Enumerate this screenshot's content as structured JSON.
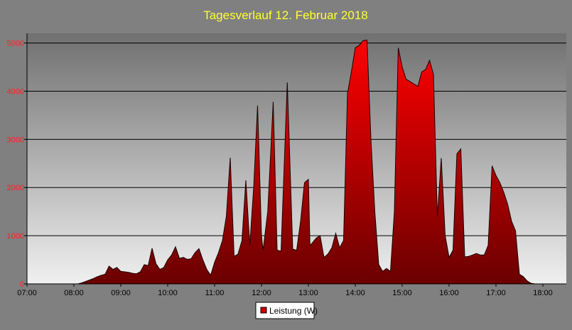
{
  "chart_data": {
    "type": "area",
    "title": "Tagesverlauf 12. Februar 2018",
    "xlabel": "",
    "ylabel": "",
    "x_ticks": [
      "07:00",
      "08:00",
      "09:00",
      "10:00",
      "11:00",
      "12:00",
      "13:00",
      "14:00",
      "15:00",
      "16:00",
      "17:00",
      "18:00"
    ],
    "y_ticks": [
      "0",
      "1000",
      "2000",
      "3000",
      "4000",
      "5000"
    ],
    "xlim": [
      "07:00",
      "18:30"
    ],
    "ylim": [
      0,
      5200
    ],
    "grid": true,
    "legend_position": "bottom-center",
    "colors": {
      "background": "#808080",
      "plot_top": "#707070",
      "plot_bottom": "#f0f0f0",
      "fill_top": "#ff0000",
      "fill_bottom": "#6a0000",
      "line": "#1a0000",
      "title": "#ffff33",
      "y_tick_label": "#ff2020",
      "grid": "#000000"
    },
    "series": [
      {
        "name": "Leistung (W)",
        "points": [
          [
            "07:00",
            0
          ],
          [
            "08:00",
            0
          ],
          [
            "08:05",
            0
          ],
          [
            "08:10",
            20
          ],
          [
            "08:15",
            50
          ],
          [
            "08:20",
            80
          ],
          [
            "08:25",
            110
          ],
          [
            "08:30",
            150
          ],
          [
            "08:35",
            180
          ],
          [
            "08:40",
            200
          ],
          [
            "08:45",
            370
          ],
          [
            "08:50",
            300
          ],
          [
            "08:55",
            340
          ],
          [
            "09:00",
            260
          ],
          [
            "09:05",
            250
          ],
          [
            "09:10",
            240
          ],
          [
            "09:15",
            220
          ],
          [
            "09:20",
            210
          ],
          [
            "09:25",
            250
          ],
          [
            "09:30",
            400
          ],
          [
            "09:35",
            380
          ],
          [
            "09:40",
            740
          ],
          [
            "09:45",
            420
          ],
          [
            "09:50",
            300
          ],
          [
            "09:55",
            340
          ],
          [
            "10:00",
            500
          ],
          [
            "10:05",
            600
          ],
          [
            "10:10",
            770
          ],
          [
            "10:15",
            530
          ],
          [
            "10:20",
            550
          ],
          [
            "10:25",
            510
          ],
          [
            "10:30",
            520
          ],
          [
            "10:35",
            650
          ],
          [
            "10:40",
            730
          ],
          [
            "10:45",
            500
          ],
          [
            "10:50",
            300
          ],
          [
            "10:55",
            180
          ],
          [
            "11:00",
            450
          ],
          [
            "11:05",
            650
          ],
          [
            "11:10",
            900
          ],
          [
            "11:15",
            1400
          ],
          [
            "11:20",
            2620
          ],
          [
            "11:25",
            570
          ],
          [
            "11:30",
            620
          ],
          [
            "11:35",
            900
          ],
          [
            "11:40",
            2150
          ],
          [
            "11:45",
            800
          ],
          [
            "11:50",
            2000
          ],
          [
            "11:55",
            3700
          ],
          [
            "12:00",
            1000
          ],
          [
            "12:02",
            700
          ],
          [
            "12:08",
            1500
          ],
          [
            "12:15",
            3780
          ],
          [
            "12:20",
            700
          ],
          [
            "12:25",
            680
          ],
          [
            "12:33",
            4180
          ],
          [
            "12:40",
            720
          ],
          [
            "12:45",
            700
          ],
          [
            "12:50",
            1300
          ],
          [
            "12:55",
            2100
          ],
          [
            "13:00",
            2170
          ],
          [
            "13:02",
            800
          ],
          [
            "13:05",
            850
          ],
          [
            "13:10",
            950
          ],
          [
            "13:15",
            1000
          ],
          [
            "13:20",
            550
          ],
          [
            "13:25",
            620
          ],
          [
            "13:30",
            750
          ],
          [
            "13:35",
            1050
          ],
          [
            "13:40",
            750
          ],
          [
            "13:45",
            900
          ],
          [
            "13:50",
            3950
          ],
          [
            "13:55",
            4400
          ],
          [
            "14:00",
            4900
          ],
          [
            "14:05",
            4950
          ],
          [
            "14:10",
            5050
          ],
          [
            "14:15",
            5060
          ],
          [
            "14:20",
            3000
          ],
          [
            "14:25",
            1500
          ],
          [
            "14:30",
            400
          ],
          [
            "14:35",
            260
          ],
          [
            "14:40",
            320
          ],
          [
            "14:45",
            260
          ],
          [
            "14:50",
            1500
          ],
          [
            "14:55",
            4900
          ],
          [
            "15:00",
            4500
          ],
          [
            "15:05",
            4250
          ],
          [
            "15:10",
            4200
          ],
          [
            "15:15",
            4150
          ],
          [
            "15:20",
            4100
          ],
          [
            "15:25",
            4400
          ],
          [
            "15:30",
            4450
          ],
          [
            "15:35",
            4640
          ],
          [
            "15:40",
            4350
          ],
          [
            "15:45",
            1400
          ],
          [
            "15:50",
            2610
          ],
          [
            "15:55",
            1000
          ],
          [
            "16:00",
            550
          ],
          [
            "16:05",
            700
          ],
          [
            "16:10",
            2700
          ],
          [
            "16:15",
            2800
          ],
          [
            "16:20",
            560
          ],
          [
            "16:25",
            570
          ],
          [
            "16:30",
            600
          ],
          [
            "16:35",
            630
          ],
          [
            "16:40",
            600
          ],
          [
            "16:45",
            600
          ],
          [
            "16:50",
            800
          ],
          [
            "16:55",
            2450
          ],
          [
            "17:00",
            2250
          ],
          [
            "17:05",
            2100
          ],
          [
            "17:10",
            1900
          ],
          [
            "17:15",
            1650
          ],
          [
            "17:20",
            1300
          ],
          [
            "17:25",
            1100
          ],
          [
            "17:30",
            200
          ],
          [
            "17:35",
            150
          ],
          [
            "17:40",
            60
          ],
          [
            "17:45",
            10
          ],
          [
            "17:50",
            0
          ],
          [
            "18:30",
            0
          ]
        ]
      }
    ]
  }
}
